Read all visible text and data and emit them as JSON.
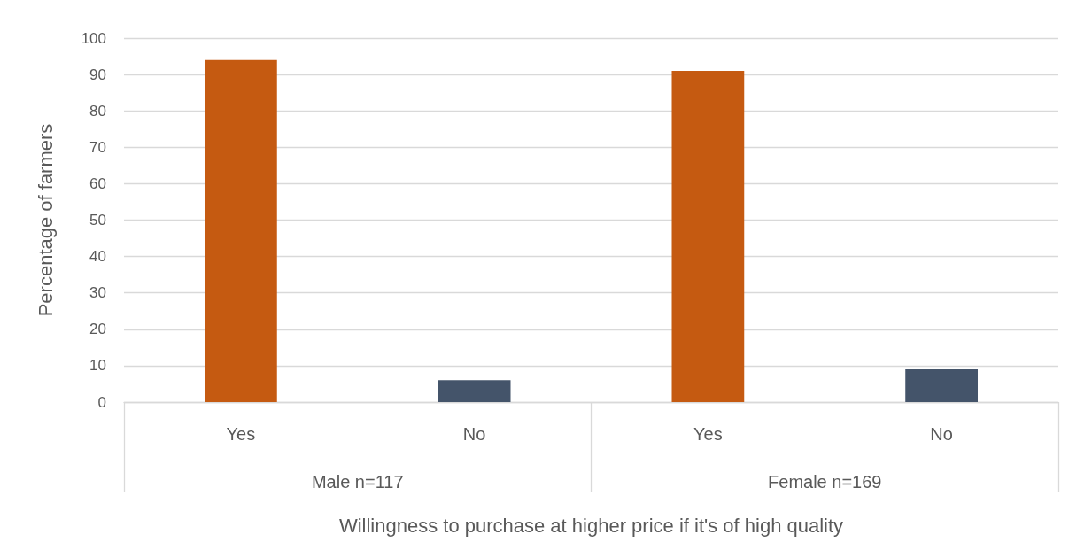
{
  "chart_data": {
    "type": "bar",
    "xlabel": "Willingness to purchase at higher price if it's of high quality",
    "ylabel": "Percentage of farmers",
    "categories": [
      "Yes",
      "No",
      "Yes",
      "No"
    ],
    "values": [
      94,
      6,
      91,
      9
    ],
    "colors": [
      "#c55a11",
      "#44546a",
      "#c55a11",
      "#44546a"
    ],
    "annotations": [
      "Male n=117",
      "Female n=169"
    ],
    "ylim": [
      0,
      100
    ],
    "yticks": [
      0,
      10,
      20,
      30,
      40,
      50,
      60,
      70,
      80,
      90,
      100
    ],
    "grid": "y"
  }
}
